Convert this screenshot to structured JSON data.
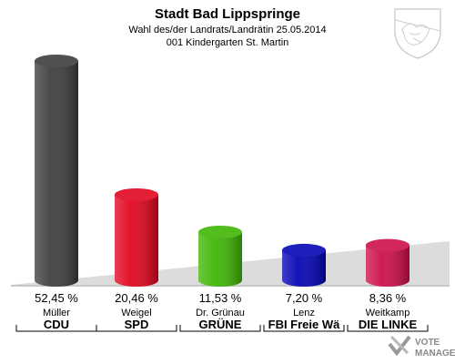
{
  "chart_data": {
    "type": "bar",
    "title": "Stadt Bad Lippspringe",
    "subtitle": "Wahl des/der Landrats/Landrätin 25.05.2014",
    "subtitle2": "001 Kindergarten St. Martin",
    "ylim": [
      0,
      55
    ],
    "categories": [
      "CDU",
      "SPD",
      "GRÜNE",
      "FBI Freie Wä",
      "DIE LINKE"
    ],
    "candidates": [
      "Müller",
      "Weigel",
      "Dr. Grünau",
      "Lenz",
      "Weitkamp"
    ],
    "values": [
      52.45,
      20.46,
      11.53,
      7.2,
      8.36
    ],
    "value_labels": [
      "52,45 %",
      "20,46 %",
      "11,53 %",
      "7,20 %",
      "8,36 %"
    ],
    "colors": [
      "#3a3a3a",
      "#e0001b",
      "#3cb400",
      "#0000b4",
      "#cc0a46"
    ]
  },
  "branding": {
    "line1": "VOTE",
    "line2": "MANAGER",
    "crest_icon": "coat-of-arms-icon"
  }
}
